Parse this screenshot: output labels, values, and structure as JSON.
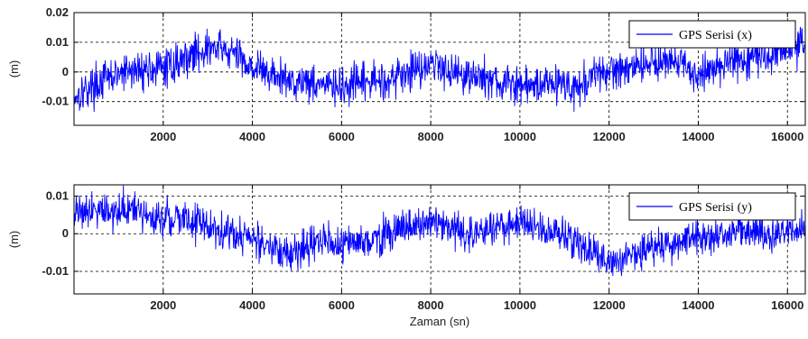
{
  "chart_data": [
    {
      "type": "line",
      "title": "",
      "xlabel": "",
      "ylabel": "(m)",
      "xlim": [
        0,
        16400
      ],
      "ylim": [
        -0.018,
        0.02
      ],
      "xticks": [
        2000,
        4000,
        6000,
        8000,
        10000,
        12000,
        14000,
        16000
      ],
      "xtick_labels": [
        "2000",
        "4000",
        "6000",
        "8000",
        "10000",
        "12000",
        "14000",
        "16000"
      ],
      "yticks": [
        -0.01,
        0,
        0.01,
        0.02
      ],
      "ytick_labels": [
        "-0.01",
        "0",
        "0.01",
        "0.02"
      ],
      "grid": true,
      "legend": "top-right",
      "series": [
        {
          "name": "GPS Serisi (x)",
          "color": "#0000ff",
          "x": [
            0,
            400,
            800,
            1200,
            1600,
            2000,
            2400,
            2800,
            3200,
            3600,
            4000,
            4400,
            4800,
            5200,
            5600,
            6000,
            6400,
            6800,
            7200,
            7600,
            8000,
            8400,
            8800,
            9200,
            9600,
            10000,
            10400,
            10800,
            11200,
            11600,
            12000,
            12400,
            12800,
            13200,
            13600,
            14000,
            14400,
            14800,
            15200,
            15600,
            16000,
            16400
          ],
          "y": [
            -0.008,
            -0.005,
            -0.002,
            0.0,
            0.001,
            0.001,
            0.004,
            0.007,
            0.008,
            0.006,
            0.002,
            -0.001,
            -0.003,
            -0.003,
            -0.004,
            -0.006,
            -0.004,
            -0.003,
            -0.002,
            0.001,
            0.003,
            0.001,
            -0.001,
            -0.002,
            -0.004,
            -0.005,
            -0.004,
            -0.003,
            -0.006,
            -0.002,
            0.0,
            0.002,
            0.003,
            0.004,
            0.002,
            -0.001,
            0.002,
            0.004,
            0.005,
            0.006,
            0.008,
            0.01
          ]
        }
      ]
    },
    {
      "type": "line",
      "title": "",
      "xlabel": "Zaman (sn)",
      "ylabel": "(m)",
      "xlim": [
        0,
        16400
      ],
      "ylim": [
        -0.016,
        0.013
      ],
      "xticks": [
        2000,
        4000,
        6000,
        8000,
        10000,
        12000,
        14000,
        16000
      ],
      "xtick_labels": [
        "2000",
        "4000",
        "6000",
        "8000",
        "10000",
        "12000",
        "14000",
        "16000"
      ],
      "yticks": [
        -0.01,
        0,
        0.01
      ],
      "ytick_labels": [
        "-0.01",
        "0",
        "0.01"
      ],
      "grid": true,
      "legend": "top-right",
      "series": [
        {
          "name": "GPS Serisi (y)",
          "color": "#0000ff",
          "x": [
            0,
            400,
            800,
            1200,
            1600,
            2000,
            2400,
            2800,
            3200,
            3600,
            4000,
            4400,
            4800,
            5200,
            5600,
            6000,
            6400,
            6800,
            7200,
            7600,
            8000,
            8400,
            8800,
            9200,
            9600,
            10000,
            10400,
            10800,
            11200,
            11600,
            12000,
            12400,
            12800,
            13200,
            13600,
            14000,
            14400,
            14800,
            15200,
            15600,
            16000,
            16400
          ],
          "y": [
            0.006,
            0.007,
            0.006,
            0.006,
            0.005,
            0.004,
            0.004,
            0.003,
            0.001,
            0.0,
            -0.001,
            -0.004,
            -0.006,
            -0.003,
            -0.002,
            -0.003,
            -0.002,
            -0.001,
            0.001,
            0.002,
            0.003,
            0.002,
            -0.001,
            0.001,
            0.002,
            0.003,
            0.002,
            0.0,
            -0.002,
            -0.004,
            -0.008,
            -0.006,
            -0.004,
            -0.003,
            -0.002,
            -0.001,
            -0.001,
            0.0,
            0.001,
            0.0,
            0.0,
            0.001
          ]
        }
      ]
    }
  ]
}
